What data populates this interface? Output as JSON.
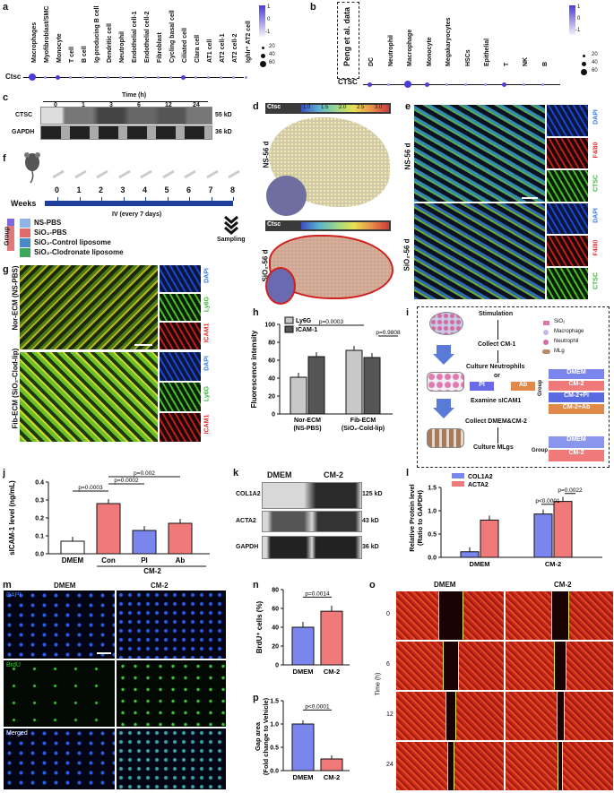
{
  "panels": {
    "a": {
      "letter": "a",
      "row_label": "Ctsc",
      "columns": [
        "Macrophages",
        "Myofibroblast/SMC",
        "Monocyte",
        "T cell",
        "B cell",
        "Ig-producing B cell",
        "Dendritic cell",
        "Neutrophil",
        "Endothelial cell-1",
        "Endothelial cell-2",
        "Fibroblast",
        "Cycling basal cell",
        "Ciliated cell",
        "Clara cell",
        "AT1 cell",
        "AT2 cell-1",
        "AT2 cell-2",
        "Ighlr⁺ AT2 cell"
      ],
      "dot_sizes": [
        3,
        1,
        2,
        1,
        1,
        1,
        1,
        1,
        1,
        1,
        1,
        1,
        2,
        1,
        1,
        1,
        1,
        1
      ],
      "colorbar_ticks": [
        "1",
        "0",
        "-1"
      ],
      "size_legend": [
        "20",
        "40",
        "60"
      ]
    },
    "b": {
      "letter": "b",
      "box_label": "Peng et al. data",
      "row_label": "CTSC",
      "columns": [
        "DC",
        "Neutrophil",
        "Macrophage",
        "Monocyte",
        "Megakaryocytes",
        "HSCs",
        "Epithelial",
        "T",
        "NK",
        "B"
      ],
      "dot_sizes": [
        2,
        1,
        3,
        2,
        1,
        1,
        1,
        2,
        1,
        1
      ],
      "colorbar_ticks": [
        "1",
        "0",
        "-1"
      ],
      "size_legend": [
        "20",
        "40",
        "60"
      ]
    },
    "c": {
      "letter": "c",
      "time_label": "Time (h)",
      "times": [
        "0",
        "1",
        "3",
        "6",
        "12",
        "24"
      ],
      "rows": [
        {
          "name": "CTSC",
          "kd": "55 kD"
        },
        {
          "name": "GAPDH",
          "kd": "36 kD"
        }
      ]
    },
    "d": {
      "letter": "d",
      "gene": "Ctsc",
      "scale": [
        "1.0",
        "1.5",
        "2.0",
        "2.5",
        "3.0"
      ],
      "rows": [
        "NS-56 d",
        "SiO₂-56 d"
      ]
    },
    "e": {
      "letter": "e",
      "rows": [
        "NS-56 d",
        "SiO₂-56 d"
      ],
      "channels": [
        "DAPI",
        "F4/80",
        "CTSC"
      ]
    },
    "f": {
      "letter": "f",
      "weeks_label": "Weeks",
      "weeks": [
        "0",
        "1",
        "2",
        "3",
        "4",
        "5",
        "6",
        "7",
        "8"
      ],
      "iv_label": "IV (every 7 days)",
      "sampling": "Sampling",
      "group_label": "Group",
      "groups": [
        "NS-PBS",
        "SiO₂-PBS",
        "SiO₂-Control liposome",
        "SiO₂-Clodronate liposome"
      ],
      "group_colors": [
        "#8fb4e8",
        "#e06a6a",
        "#4a88c8",
        "#3aaa5a"
      ]
    },
    "g": {
      "letter": "g",
      "rows": [
        "Nor-ECM (NS-PBS)",
        "Fib-ECM (SiO₂-Clod-lip)"
      ],
      "channels": [
        "DAPI",
        "Ly6G",
        "ICAM1"
      ]
    },
    "h": {
      "letter": "h",
      "ylabel": "Fluorescence intensity",
      "legend": [
        "Ly6G",
        "ICAM-1"
      ],
      "pvalues": [
        "p=0.0003",
        "p=0.9808"
      ]
    },
    "i": {
      "letter": "i",
      "flow": [
        "Stimulation",
        "Collect CM-1",
        "Culture Neutrophils",
        "or",
        "Examine sICAM1",
        "Collect DMEM&CM-2",
        "Culture MLgs"
      ],
      "legend": [
        "SiO₂",
        "Macrophage",
        "Neutrophil",
        "MLg"
      ],
      "pl": "Pl",
      "ab": "Ab",
      "group": "Group",
      "group1": [
        "DMEM",
        "CM-2",
        "CM-2+Pl",
        "CM-2+Ab"
      ],
      "group2": [
        "DMEM",
        "CM-2"
      ]
    },
    "j": {
      "letter": "j",
      "ylabel": "sICAM-1 level (ng/mL)",
      "xlabels": [
        "DMEM",
        "Con",
        "Pl",
        "Ab"
      ],
      "cm2": "CM-2",
      "pvalues": [
        "p=0.0003",
        "p=0.0002",
        "p=0.002"
      ]
    },
    "k": {
      "letter": "k",
      "cols": [
        "DMEM",
        "CM-2"
      ],
      "rows": [
        {
          "name": "COL1A2",
          "kd": "125 kD"
        },
        {
          "name": "ACTA2",
          "kd": "43 kD"
        },
        {
          "name": "GAPDH",
          "kd": "36 kD"
        }
      ]
    },
    "l": {
      "letter": "l",
      "ylabel": "Relative Protein level (Ratio to GAPDH)",
      "legend": [
        "COL1A2",
        "ACTA2"
      ],
      "pvalues": [
        "p<0.0001",
        "p=0.0022"
      ],
      "xlabels": [
        "DMEM",
        "CM-2"
      ]
    },
    "m": {
      "letter": "m",
      "cols": [
        "DMEM",
        "CM-2"
      ],
      "rows": [
        "DAPI",
        "BrdU",
        "Merged"
      ]
    },
    "n": {
      "letter": "n",
      "ylabel": "BrdU⁺ cells (%)",
      "pvalue": "p=0.0014",
      "xlabels": [
        "DMEM",
        "CM-2"
      ]
    },
    "o": {
      "letter": "o",
      "cols": [
        "DMEM",
        "CM-2"
      ],
      "times": [
        "0",
        "6",
        "12",
        "24"
      ],
      "time_label": "Time (h)"
    },
    "p": {
      "letter": "p",
      "ylabel": "Gap area (Fold change to Vehicle)",
      "pvalue": "p<0.0001",
      "xlabels": [
        "DMEM",
        "CM-2"
      ]
    }
  },
  "chart_data": [
    {
      "type": "bar",
      "panel": "h",
      "ylabel": "Fluorescence intensity",
      "categories": [
        "Nor-ECM (NS-PBS)",
        "Fib-ECM (SiO₂-Cold-lip)"
      ],
      "ylim": [
        0,
        100
      ],
      "yticks": [
        0,
        20,
        40,
        60,
        80,
        100
      ],
      "series": [
        {
          "name": "Ly6G",
          "values": [
            41,
            71
          ]
        },
        {
          "name": "ICAM-1",
          "values": [
            64,
            63
          ]
        }
      ]
    },
    {
      "type": "bar",
      "panel": "j",
      "ylabel": "sICAM-1 level (ng/mL)",
      "categories": [
        "DMEM",
        "Con",
        "Pl",
        "Ab"
      ],
      "ylim": [
        0,
        0.4
      ],
      "yticks": [
        0.0,
        0.1,
        0.2,
        0.3,
        0.4
      ],
      "series": [
        {
          "values": [
            0.07,
            0.28,
            0.13,
            0.17
          ]
        }
      ],
      "colors": [
        "#ffffff",
        "#f07a7a",
        "#7a86ee",
        "#f07a7a"
      ]
    },
    {
      "type": "bar",
      "panel": "l",
      "ylabel": "Relative Protein level (Ratio to GAPDH)",
      "categories": [
        "DMEM",
        "CM-2"
      ],
      "ylim": [
        0,
        1.5
      ],
      "yticks": [
        0.0,
        0.5,
        1.0,
        1.5
      ],
      "series": [
        {
          "name": "COL1A2",
          "values": [
            0.12,
            0.93
          ]
        },
        {
          "name": "ACTA2",
          "values": [
            0.8,
            1.2
          ]
        }
      ]
    },
    {
      "type": "bar",
      "panel": "n",
      "ylabel": "BrdU⁺ cells (%)",
      "categories": [
        "DMEM",
        "CM-2"
      ],
      "ylim": [
        0,
        80
      ],
      "yticks": [
        0,
        20,
        40,
        60,
        80
      ],
      "series": [
        {
          "values": [
            40,
            57
          ]
        }
      ]
    },
    {
      "type": "bar",
      "panel": "p",
      "ylabel": "Gap area (Fold change to Vehicle)",
      "categories": [
        "DMEM",
        "CM-2"
      ],
      "ylim": [
        0,
        1.5
      ],
      "yticks": [
        0.0,
        0.5,
        1.0,
        1.5
      ],
      "series": [
        {
          "values": [
            1.0,
            0.25
          ]
        }
      ]
    }
  ]
}
